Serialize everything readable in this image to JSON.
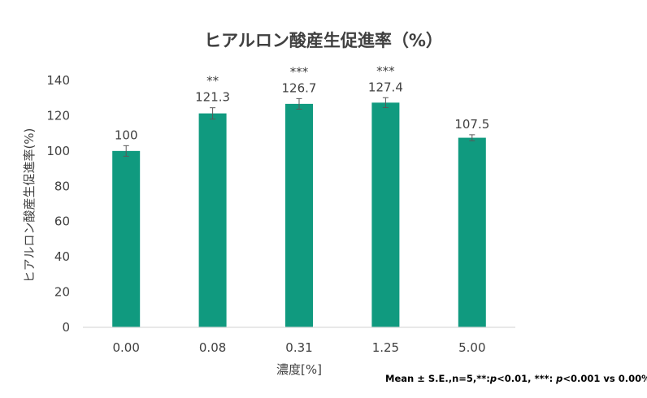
{
  "chart_data": {
    "type": "bar",
    "title": "ヒアルロン酸産生促進率（%）",
    "xlabel": "濃度[%]",
    "ylabel": "ヒアルロン酸産生促進率(%)",
    "categories": [
      "0.00",
      "0.08",
      "0.31",
      "1.25",
      "5.00"
    ],
    "values": [
      100,
      121.3,
      126.7,
      127.4,
      107.5
    ],
    "value_labels": [
      "100",
      "121.3",
      "126.7",
      "127.4",
      "107.5"
    ],
    "errors": [
      3,
      3.2,
      3,
      2.8,
      1.7
    ],
    "significance": [
      "",
      "**",
      "***",
      "***",
      ""
    ],
    "ylim": [
      0,
      140
    ],
    "yticks": [
      0,
      20,
      40,
      60,
      80,
      100,
      120,
      140
    ],
    "grid": false,
    "bar_color": "#109A7F",
    "footnote": {
      "prefix": "Mean ± S.E.,n=5,**:",
      "p1": "p",
      "mid": "<0.01, ***: ",
      "p2": "p",
      "suffix": "<0.001 vs 0.00%"
    }
  }
}
